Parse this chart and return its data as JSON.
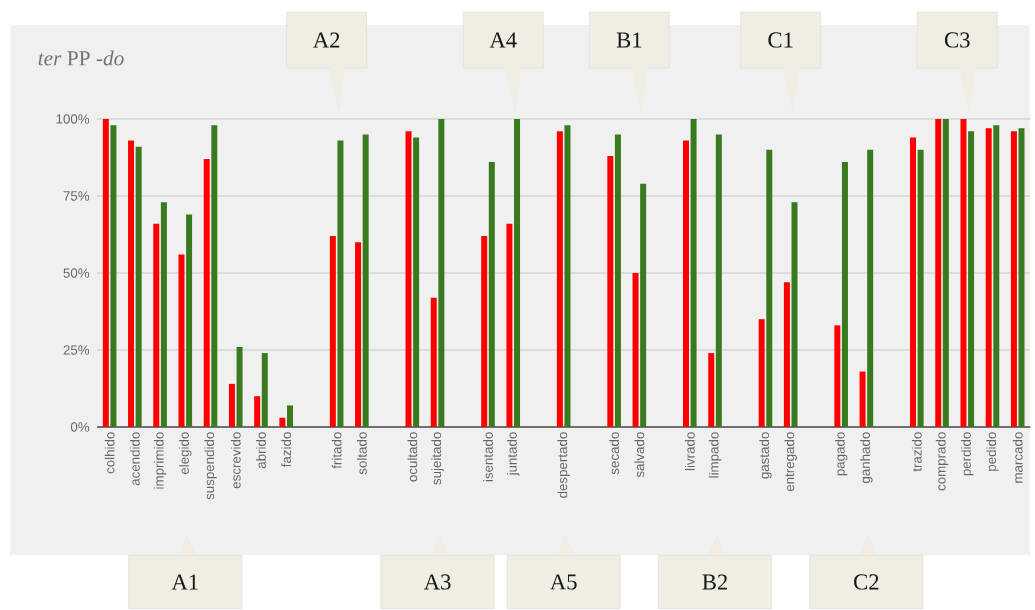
{
  "chart_data": {
    "type": "bar",
    "title": "*ter* PP -*do*",
    "categories": [
      "colhido",
      "acendido",
      "imprimido",
      "elegido",
      "suspendido",
      "escrevido",
      "abrido",
      "fazido",
      null,
      "fritado",
      "soltado",
      null,
      "ocultado",
      "sujeitado",
      null,
      "isentado",
      "juntado",
      null,
      "despertado",
      null,
      "secado",
      "salvado",
      null,
      "livrado",
      "limpado",
      null,
      "gastado",
      "entregado",
      null,
      "pagado",
      "ganhado",
      null,
      "trazido",
      "comprado",
      "perdido",
      "pedido",
      "marcado"
    ],
    "series": [
      {
        "color": "#ff0000",
        "values": [
          100,
          93,
          66,
          56,
          87,
          14,
          10,
          3,
          null,
          62,
          60,
          null,
          96,
          42,
          null,
          62,
          66,
          null,
          96,
          null,
          88,
          50,
          null,
          93,
          24,
          null,
          35,
          47,
          null,
          33,
          18,
          null,
          94,
          100,
          100,
          97,
          96
        ]
      },
      {
        "color": "#3a7a1e",
        "values": [
          98,
          91,
          73,
          69,
          98,
          26,
          24,
          7,
          null,
          93,
          95,
          null,
          94,
          100,
          null,
          86,
          100,
          null,
          98,
          null,
          95,
          79,
          null,
          100,
          95,
          null,
          90,
          73,
          null,
          86,
          90,
          null,
          90,
          100,
          96,
          98,
          97
        ]
      }
    ],
    "ylim": [
      0,
      100
    ],
    "yticks": [
      {
        "value": 0,
        "label": "0%"
      },
      {
        "value": 25,
        "label": "25%"
      },
      {
        "value": 50,
        "label": "50%"
      },
      {
        "value": 75,
        "label": "75%"
      },
      {
        "value": 100,
        "label": "100%"
      }
    ],
    "grid": "y",
    "annotations": [
      "A1",
      "A2",
      "A3",
      "A4",
      "A5",
      "B1",
      "B2",
      "C1",
      "C2",
      "C3"
    ]
  }
}
